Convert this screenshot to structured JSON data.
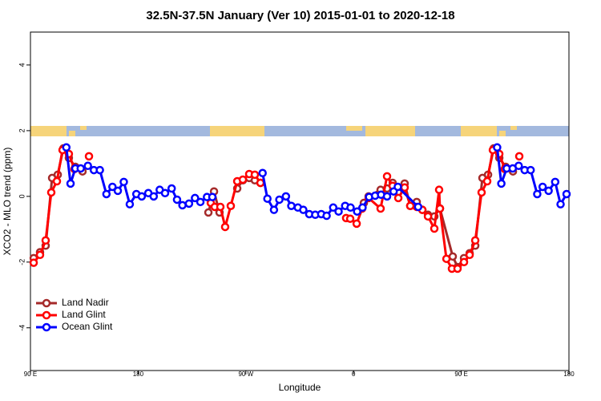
{
  "chart_data": {
    "type": "line",
    "title": "32.5N-37.5N January (Ver 10)   2015-01-01 to 2020-12-18",
    "x_label": "Longitude",
    "y_label": "XCO2 - MLO trend (ppm)",
    "xlim": [
      90,
      540
    ],
    "xticks": [
      {
        "value": 90,
        "label": "90 E"
      },
      180,
      {
        "value": 270,
        "label": "90 W"
      },
      {
        "value": 360,
        "label": "0"
      },
      {
        "value": 450,
        "label": "90 E"
      },
      {
        "value": 540,
        "label": "180"
      }
    ],
    "ylim": [
      -5.3,
      5.0
    ],
    "yticks": [
      -4,
      -2,
      0,
      2,
      4
    ],
    "legend": "bottom-left",
    "series": [
      {
        "name": "Land Nadir",
        "color": "#a52a2a",
        "x": [
          92.7,
          98,
          102.7,
          108.1,
          112.8,
          117.5,
          122.1,
          127.5,
          133.5,
          null,
          238.7,
          243.4,
          248,
          null,
          262.8,
          267.5,
          272.8,
          277.5,
          282.2,
          null,
          368.6,
          372.6,
          382.6,
          388,
          392.7,
          397.4,
          402.7,
          407.4,
          412.8,
          417.5,
          422.2,
          427.5,
          432.2,
          442.9,
          446.9,
          452.3,
          457,
          461.7,
          467.7,
          472.4,
          477.1,
          481.8,
          487.1,
          493.2
        ],
        "values": [
          -1.88,
          -1.7,
          -1.5,
          0.56,
          0.66,
          1.46,
          1.17,
          0.9,
          0.76,
          null,
          -0.49,
          0.15,
          -0.49,
          null,
          0.24,
          0.49,
          0.56,
          0.49,
          0.41,
          null,
          -0.2,
          0,
          0.2,
          0.24,
          0.41,
          0.12,
          0.39,
          -0.29,
          -0.17,
          -0.41,
          -0.56,
          -0.61,
          -0.37,
          -1.83,
          -2.15,
          -1.88,
          -1.73,
          -1.5,
          0.56,
          0.66,
          1.46,
          1.17,
          0.9,
          0.76
        ]
      },
      {
        "name": "Land Glint",
        "color": "#ff0000",
        "x": [
          92.7,
          98,
          102.7,
          107.4,
          112.1,
          116.8,
          122.1,
          126.8,
          null,
          138.9,
          null,
          240.7,
          244,
          248.7,
          252.7,
          257.4,
          262.8,
          267.5,
          272.8,
          277.5,
          282.2,
          null,
          353.8,
          357.2,
          362.6,
          367.2,
          372.6,
          382.6,
          388,
          392.7,
          397.4,
          402.7,
          407.4,
          412.8,
          417.5,
          422.2,
          427.5,
          431.5,
          432.2,
          437.6,
          442.2,
          446.9,
          452.3,
          457,
          461.7,
          467,
          471.7,
          476.4,
          481.8,
          486.4,
          null,
          498.5
        ],
        "values": [
          -2.02,
          -1.78,
          -1.34,
          0.12,
          0.46,
          1.41,
          1.29,
          0.83,
          null,
          1.22,
          null,
          -0.2,
          -0.32,
          -0.32,
          -0.93,
          -0.29,
          0.46,
          0.51,
          0.68,
          0.66,
          0.41,
          null,
          -0.66,
          -0.68,
          -0.83,
          -0.37,
          -0.05,
          -0.37,
          0.61,
          0.32,
          -0.05,
          0.27,
          -0.29,
          -0.32,
          -0.41,
          -0.61,
          -0.98,
          0.2,
          -0.37,
          -1.9,
          -2.2,
          -2.2,
          -2.0,
          -1.78,
          -1.34,
          0.12,
          0.46,
          1.41,
          1.29,
          0.83,
          null,
          1.22
        ]
      },
      {
        "name": "Ocean Glint",
        "color": "#0000ff",
        "x": [
          120,
          123.5,
          127.5,
          132,
          138,
          143,
          148,
          153.5,
          158.5,
          163,
          168,
          173,
          178.5,
          183,
          188.5,
          193,
          198,
          202.5,
          208,
          212.5,
          217,
          222.5,
          227.5,
          232,
          237.5,
          242,
          null,
          284,
          288,
          293.5,
          298,
          303.5,
          308,
          313.5,
          318,
          323,
          328,
          333,
          337.5,
          343,
          347.5,
          353,
          357.5,
          363,
          367.5,
          373,
          378,
          383,
          388,
          393.5,
          397,
          414,
          null,
          480,
          483.5,
          488,
          493,
          498,
          503,
          508,
          513.5,
          518,
          523,
          528.5,
          533,
          538
        ],
        "values": [
          1.49,
          0.39,
          0.85,
          0.85,
          0.93,
          0.8,
          0.8,
          0.07,
          0.29,
          0.17,
          0.44,
          -0.24,
          0.07,
          0,
          0.1,
          0,
          0.2,
          0.1,
          0.24,
          -0.1,
          -0.27,
          -0.22,
          -0.05,
          -0.17,
          -0.02,
          -0.02,
          null,
          0.71,
          -0.07,
          -0.41,
          -0.1,
          0,
          -0.29,
          -0.34,
          -0.41,
          -0.54,
          -0.56,
          -0.54,
          -0.59,
          -0.34,
          -0.46,
          -0.29,
          -0.34,
          -0.46,
          -0.34,
          -0.02,
          0.02,
          0.05,
          0,
          0.15,
          0.29,
          -0.32,
          null,
          1.49,
          0.39,
          0.85,
          0.85,
          0.93,
          0.8,
          0.8,
          0.07,
          0.29,
          0.17,
          0.44,
          -0.24,
          0.07
        ]
      }
    ]
  }
}
